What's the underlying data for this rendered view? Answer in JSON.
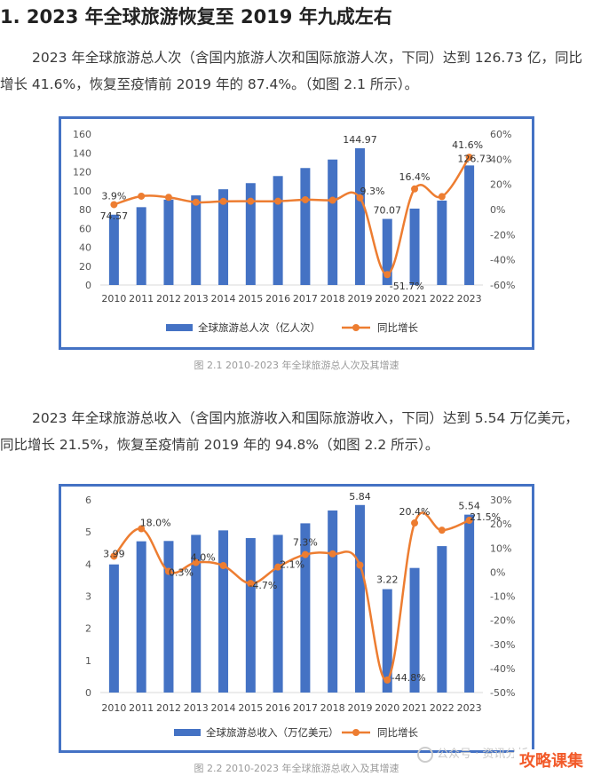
{
  "heading": "1. 2023 年全球旅游恢复至 2019 年九成左右",
  "para1": "2023 年全球旅游总人次（含国内旅游人次和国际旅游人次，下同）达到 126.73 亿，同比增长 41.6%，恢复至疫情前 2019 年的 87.4%。（如图 2.1 所示）。",
  "caption1": "图 2.1  2010-2023 年全球旅游总人次及其增速",
  "para2": "2023 年全球旅游总收入（含国内旅游收入和国际旅游收入，下同）达到 5.54 万亿美元，同比增长 21.5%，恢复至疫情前 2019 年的 94.8%（如图 2.2 所示）。",
  "caption2": "图 2.2  2010-2023 年全球旅游总收入及其增速",
  "watermark": "公众号 · 资讯分析",
  "brand": "攻略课集",
  "colors": {
    "bar": "#4472c4",
    "line": "#ed7d31",
    "frame": "#4472c4"
  },
  "chart_data": [
    {
      "type": "bar+line",
      "categories": [
        "2010",
        "2011",
        "2012",
        "2013",
        "2014",
        "2015",
        "2016",
        "2017",
        "2018",
        "2019",
        "2020",
        "2021",
        "2022",
        "2023"
      ],
      "series": [
        {
          "name": "全球旅游总人次（亿人次）",
          "type": "bar",
          "axis": "left",
          "values": [
            74.57,
            82.5,
            90.5,
            95,
            101.5,
            108,
            115.5,
            124,
            133,
            144.97,
            70.07,
            81,
            89.5,
            126.73
          ]
        },
        {
          "name": "同比增长",
          "type": "line",
          "axis": "right",
          "unit": "%",
          "values": [
            3.9,
            10.6,
            9.7,
            5.8,
            6.5,
            6.6,
            6.6,
            7.8,
            7.4,
            9.3,
            -51.7,
            16.4,
            10.3,
            41.6
          ]
        }
      ],
      "left_axis": {
        "min": 0,
        "max": 160,
        "step": 20
      },
      "right_axis": {
        "min": -60,
        "max": 60,
        "step": 20,
        "unit": "%"
      },
      "bar_labels": [
        {
          "index": 0,
          "text": "74.57"
        },
        {
          "index": 9,
          "text": "144.97"
        },
        {
          "index": 10,
          "text": "70.07"
        },
        {
          "index": 13,
          "text": "126.73"
        }
      ],
      "line_labels": [
        {
          "index": 0,
          "text": "3.9%"
        },
        {
          "index": 9,
          "text": "9.3%"
        },
        {
          "index": 10,
          "text": "-51.7%"
        },
        {
          "index": 11,
          "text": "16.4%"
        },
        {
          "index": 13,
          "text": "41.6%"
        }
      ],
      "legend_position": "bottom",
      "legend": [
        "全球旅游总人次（亿人次）",
        "同比增长"
      ],
      "grid": false
    },
    {
      "type": "bar+line",
      "categories": [
        "2010",
        "2011",
        "2012",
        "2013",
        "2014",
        "2015",
        "2016",
        "2017",
        "2018",
        "2019",
        "2020",
        "2021",
        "2022",
        "2023"
      ],
      "series": [
        {
          "name": "全球旅游总收入（万亿美元）",
          "type": "bar",
          "axis": "left",
          "values": [
            3.99,
            4.71,
            4.72,
            4.91,
            5.05,
            4.81,
            4.91,
            5.27,
            5.67,
            5.84,
            3.22,
            3.88,
            4.56,
            5.54
          ]
        },
        {
          "name": "同比增长",
          "type": "line",
          "axis": "right",
          "unit": "%",
          "values": [
            6.6,
            18.0,
            0.3,
            4.0,
            2.7,
            -4.7,
            2.1,
            7.3,
            7.6,
            2.9,
            -44.8,
            20.4,
            17.4,
            21.5
          ]
        }
      ],
      "left_axis": {
        "min": 0,
        "max": 6,
        "step": 1
      },
      "right_axis": {
        "min": -50,
        "max": 30,
        "step": 10,
        "unit": "%"
      },
      "bar_labels": [
        {
          "index": 0,
          "text": "3.99"
        },
        {
          "index": 9,
          "text": "5.84"
        },
        {
          "index": 10,
          "text": "3.22"
        },
        {
          "index": 13,
          "text": "5.54"
        }
      ],
      "line_labels": [
        {
          "index": 1,
          "text": "18.0%"
        },
        {
          "index": 2,
          "text": "0.3%"
        },
        {
          "index": 3,
          "text": "4.0%"
        },
        {
          "index": 5,
          "text": "-4.7%"
        },
        {
          "index": 6,
          "text": "2.1%"
        },
        {
          "index": 7,
          "text": "7.3%"
        },
        {
          "index": 10,
          "text": "-44.8%"
        },
        {
          "index": 11,
          "text": "20.4%"
        },
        {
          "index": 13,
          "text": "21.5%"
        }
      ],
      "legend_position": "bottom",
      "legend": [
        "全球旅游总收入（万亿美元）",
        "同比增长"
      ],
      "grid": false
    }
  ]
}
